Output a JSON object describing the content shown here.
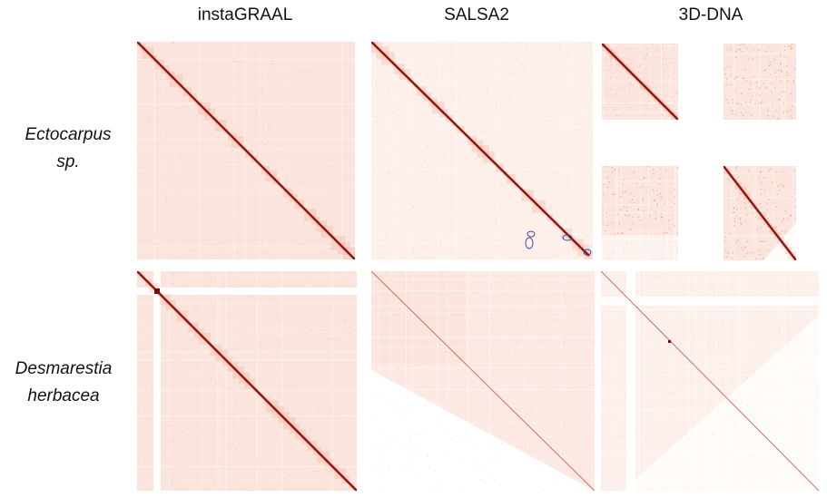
{
  "columns": [
    "instaGRAAL",
    "SALSA2",
    "3D-DNA"
  ],
  "rows": [
    {
      "label_line1": "Ectocarpus",
      "label_line2": "sp."
    },
    {
      "label_line1": "Desmarestia",
      "label_line2": "herbacea"
    }
  ],
  "colors": {
    "background_tint": "#fbe4dc",
    "light_tint": "#fdf0ea",
    "mid_tint": "#f2b1a0",
    "diagonal_dark": "#7a0a0a",
    "diagonal_mid": "#c0392b",
    "annotation_circle": "#3a46a8"
  }
}
